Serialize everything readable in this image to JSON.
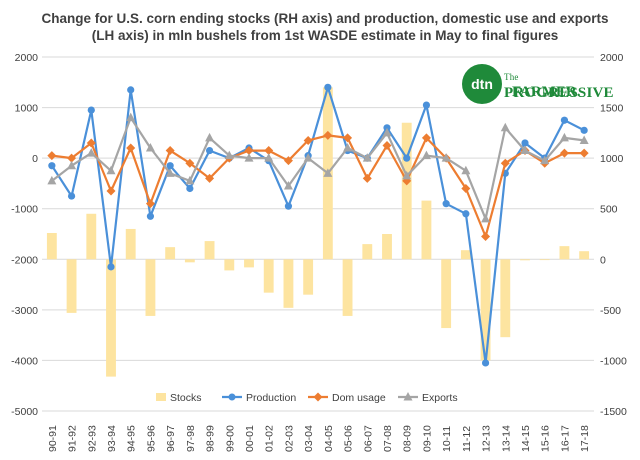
{
  "title": "Change for U.S. corn ending stocks (RH axis) and production, domestic use and exports (LH axis) in mln bushels from 1st WASDE estimate in May to final figures",
  "logo": {
    "badge": "dtn",
    "line1": "PROGRESSIVE",
    "line2": "FARMER.",
    "prefix": "The"
  },
  "colors": {
    "stocks": "#fde4a0",
    "production": "#4a90d9",
    "dom_usage": "#ed7d31",
    "exports": "#a5a5a5",
    "grid": "#d9d9d9"
  },
  "chart_data": {
    "type": "bar-line-combo",
    "categories": [
      "90-91",
      "91-92",
      "92-93",
      "93-94",
      "94-95",
      "95-96",
      "96-97",
      "97-98",
      "98-99",
      "99-00",
      "00-01",
      "01-02",
      "02-03",
      "03-04",
      "04-05",
      "05-06",
      "06-07",
      "07-08",
      "08-09",
      "09-10",
      "10-11",
      "11-12",
      "12-13",
      "13-14",
      "14-15",
      "15-16",
      "16-17",
      "17-18"
    ],
    "left_axis": {
      "ylim": [
        -5000,
        2000
      ],
      "ticks": [
        2000,
        1000,
        0,
        -1000,
        -2000,
        -3000,
        -4000,
        -5000
      ],
      "tick_labels": [
        "2000",
        "1000",
        "0",
        "-1000",
        "-2000",
        "-3000",
        "-4000",
        "-5000"
      ]
    },
    "right_axis": {
      "ylim": [
        -1500,
        2000
      ],
      "ticks": [
        2000,
        1500,
        1000,
        500,
        0,
        -500,
        -1000,
        -1500
      ],
      "tick_labels": [
        "2000",
        "1500",
        "1000",
        "500",
        "0",
        "-500",
        "-1000",
        "-1500"
      ]
    },
    "grid": true,
    "legend_position": "bottom",
    "series": [
      {
        "name": "Stocks",
        "type": "bar",
        "axis": "right",
        "values": [
          260,
          -530,
          450,
          -1160,
          300,
          -560,
          120,
          -30,
          180,
          -110,
          -80,
          -330,
          -480,
          -350,
          1700,
          -560,
          150,
          250,
          1350,
          580,
          -680,
          90,
          -1000,
          -770,
          -10,
          0,
          130,
          80
        ]
      },
      {
        "name": "Production",
        "type": "line",
        "axis": "left",
        "values": [
          -150,
          -750,
          950,
          -2150,
          1350,
          -1150,
          -150,
          -600,
          150,
          0,
          200,
          -50,
          -950,
          50,
          1400,
          150,
          0,
          600,
          0,
          1050,
          -900,
          -1100,
          -4050,
          -300,
          300,
          0,
          750,
          550
        ]
      },
      {
        "name": "Dom usage",
        "type": "line",
        "axis": "left",
        "values": [
          50,
          0,
          300,
          -650,
          200,
          -900,
          150,
          -100,
          -400,
          0,
          150,
          150,
          -50,
          350,
          450,
          400,
          -400,
          250,
          -450,
          400,
          0,
          -600,
          -1550,
          -100,
          150,
          -100,
          100,
          100
        ]
      },
      {
        "name": "Exports",
        "type": "line",
        "axis": "left",
        "values": [
          -450,
          -150,
          100,
          -250,
          800,
          200,
          -300,
          -450,
          400,
          50,
          0,
          0,
          -550,
          0,
          -300,
          200,
          0,
          500,
          -350,
          50,
          0,
          -250,
          -1200,
          600,
          150,
          -50,
          400,
          350
        ]
      }
    ]
  }
}
